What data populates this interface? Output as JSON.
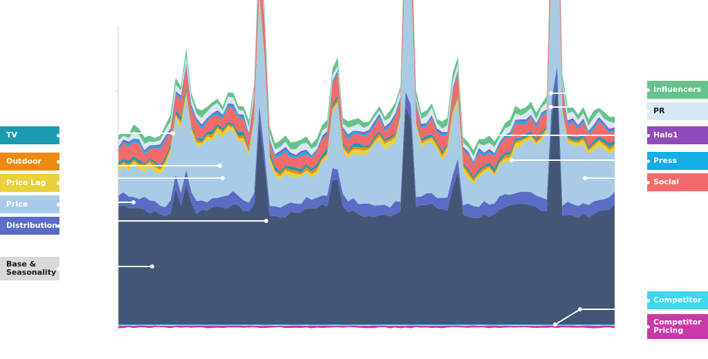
{
  "chart_data": {
    "type": "area",
    "title": "",
    "xlabel": "",
    "ylabel": "",
    "stacked": true,
    "grid": false,
    "n_points": 96,
    "series": [
      {
        "name": "Base & Seasonality",
        "color": "#435675",
        "side": "left"
      },
      {
        "name": "Distribution",
        "color": "#5b6cc4",
        "side": "left"
      },
      {
        "name": "Price",
        "color": "#a8cbe6",
        "side": "left"
      },
      {
        "name": "Price Lag",
        "color": "#e8d13a",
        "side": "left"
      },
      {
        "name": "Outdoor",
        "color": "#ee8a10",
        "side": "left"
      },
      {
        "name": "TV",
        "color": "#1a9bb0",
        "side": "left"
      },
      {
        "name": "Social",
        "color": "#f26b6b",
        "side": "right"
      },
      {
        "name": "Press",
        "color": "#12aee6",
        "side": "right"
      },
      {
        "name": "Halo1",
        "color": "#8f4bb8",
        "side": "right"
      },
      {
        "name": "PR",
        "color": "#d9e8f5",
        "side": "right"
      },
      {
        "name": "Influencers",
        "color": "#66c28c",
        "side": "right"
      },
      {
        "name": "Competitor",
        "color": "#3fd8ee",
        "side": "right"
      },
      {
        "name": "Competitor Pricing",
        "color": "#c93aa8",
        "side": "right"
      }
    ]
  }
}
